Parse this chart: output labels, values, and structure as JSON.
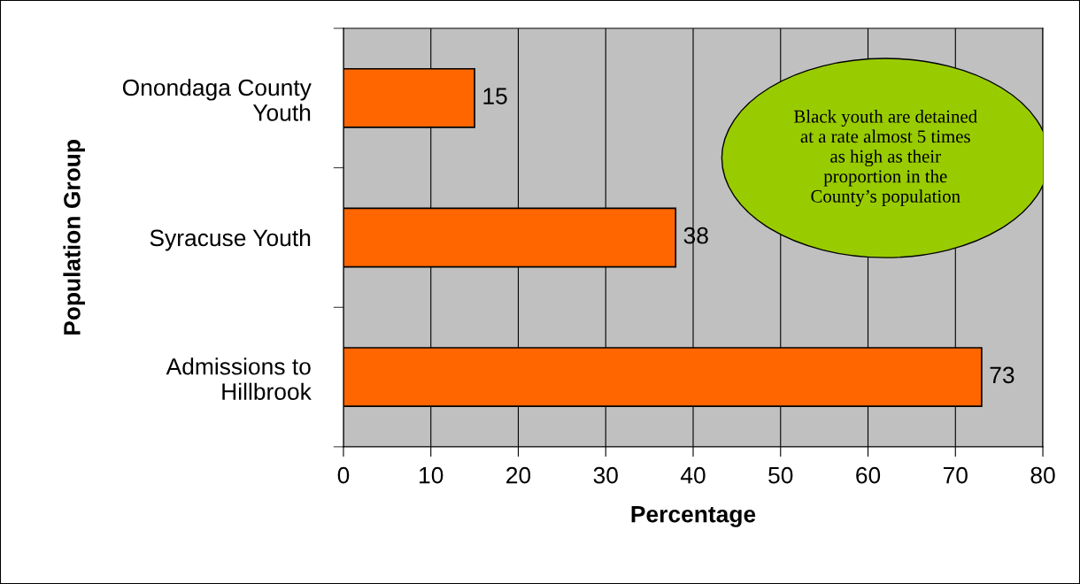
{
  "chart_data": {
    "type": "bar",
    "orientation": "horizontal",
    "categories": [
      "Onondaga County\nYouth",
      "Syracuse Youth",
      "Admissions to\nHillbrook"
    ],
    "values": [
      15,
      38,
      73
    ],
    "color": "#ff6600",
    "data_labels": true,
    "xlabel": "Percentage",
    "ylabel": "Population Group",
    "xlim": [
      0,
      80
    ],
    "xticks": [
      0,
      10,
      20,
      30,
      40,
      50,
      60,
      70,
      80
    ],
    "grid": "x",
    "legend": false,
    "annotations": [
      "Black youth are detained\nat a rate almost 5 times\nas high as their\nproportion in the\nCounty’s population"
    ]
  }
}
